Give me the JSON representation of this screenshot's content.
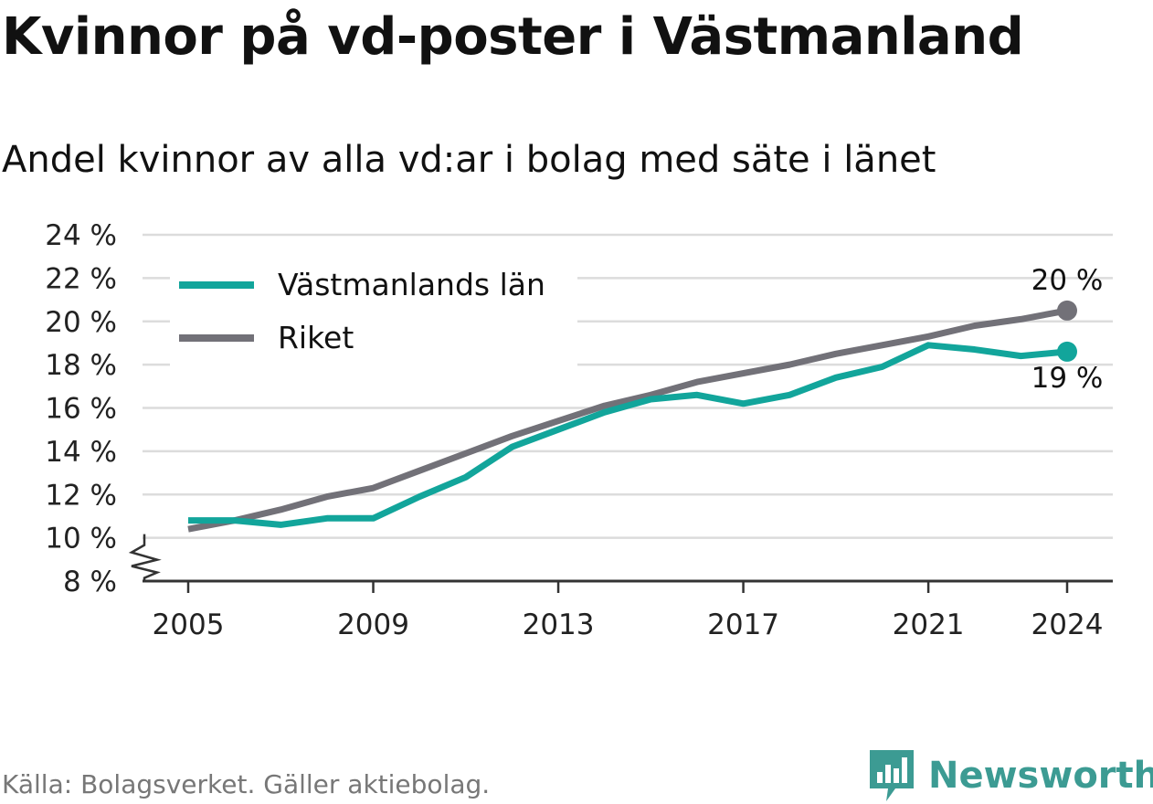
{
  "title": "Kvinnor på vd-poster i Västmanland",
  "subtitle": "Andel kvinnor av alla vd:ar i bolag med säte i länet",
  "source": "Källa: Bolagsverket. Gäller aktiebolag.",
  "brand": "Newsworthy",
  "colors": {
    "vastmanland": "#12a59b",
    "riket": "#727178",
    "grid": "#dcdcdc",
    "axis": "#333333",
    "brand": "#3c9b93"
  },
  "chart_data": {
    "type": "line",
    "x": [
      2005,
      2006,
      2007,
      2008,
      2009,
      2010,
      2011,
      2012,
      2013,
      2014,
      2015,
      2016,
      2017,
      2018,
      2019,
      2020,
      2021,
      2022,
      2023,
      2024
    ],
    "series": [
      {
        "name": "Västmanlands län",
        "color": "#12a59b",
        "values": [
          10.8,
          10.8,
          10.6,
          10.9,
          10.9,
          11.9,
          12.8,
          14.2,
          15.0,
          15.8,
          16.4,
          16.6,
          16.2,
          16.6,
          17.4,
          17.9,
          18.9,
          18.7,
          18.4,
          18.6
        ],
        "end_label": "19 %"
      },
      {
        "name": "Riket",
        "color": "#727178",
        "values": [
          10.4,
          10.8,
          11.3,
          11.9,
          12.3,
          13.1,
          13.9,
          14.7,
          15.4,
          16.1,
          16.6,
          17.2,
          17.6,
          18.0,
          18.5,
          18.9,
          19.3,
          19.8,
          20.1,
          20.5
        ],
        "end_label": "20 %"
      }
    ],
    "yticks": [
      8,
      10,
      12,
      14,
      16,
      18,
      20,
      22,
      24
    ],
    "ytick_labels": [
      "8 %",
      "10 %",
      "12 %",
      "14 %",
      "16 %",
      "18 %",
      "20 %",
      "22 %",
      "24 %"
    ],
    "xticks": [
      2005,
      2009,
      2013,
      2017,
      2021,
      2024
    ],
    "xtick_labels": [
      "2005",
      "2009",
      "2013",
      "2017",
      "2021",
      "2024"
    ],
    "ylim": [
      8,
      24
    ],
    "xlim": [
      2005,
      2024
    ],
    "axis_break": true,
    "grid": true,
    "legend_position": "top-left"
  }
}
